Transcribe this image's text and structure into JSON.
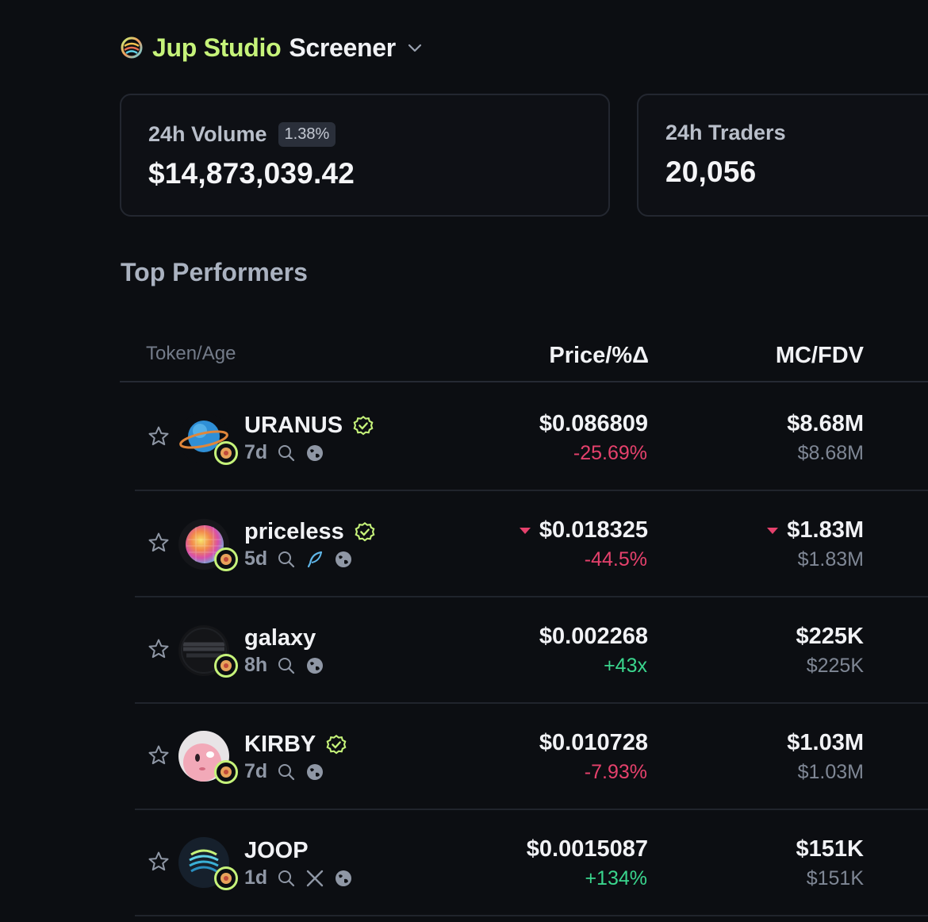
{
  "header": {
    "title_accent": "Jup Studio",
    "title_main": "Screener"
  },
  "stats": {
    "volume": {
      "label": "24h Volume",
      "change": "1.38%",
      "value": "$14,873,039.42"
    },
    "traders": {
      "label": "24h Traders",
      "value": "20,056"
    }
  },
  "section_title": "Top Performers",
  "columns": {
    "token": "Token/Age",
    "price": "Price/%Δ",
    "mc": "MC/FDV"
  },
  "rows": [
    {
      "name": "URANUS",
      "verified": true,
      "age": "7d",
      "price": "$0.086809",
      "change": "-25.69%",
      "change_dir": "neg",
      "mc": "$8.68M",
      "fdv": "$8.68M",
      "price_down_marker": false,
      "mc_down_marker": false,
      "social": [
        "search-icon",
        "globe-icon"
      ]
    },
    {
      "name": "priceless",
      "verified": true,
      "age": "5d",
      "price": "$0.018325",
      "change": "-44.5%",
      "change_dir": "neg",
      "mc": "$1.83M",
      "fdv": "$1.83M",
      "price_down_marker": true,
      "mc_down_marker": true,
      "social": [
        "search-icon",
        "feather-icon",
        "globe-icon"
      ]
    },
    {
      "name": "galaxy",
      "verified": false,
      "age": "8h",
      "price": "$0.002268",
      "change": "+43x",
      "change_dir": "pos",
      "mc": "$225K",
      "fdv": "$225K",
      "price_down_marker": false,
      "mc_down_marker": false,
      "social": [
        "search-icon",
        "globe-icon"
      ]
    },
    {
      "name": "KIRBY",
      "verified": true,
      "age": "7d",
      "price": "$0.010728",
      "change": "-7.93%",
      "change_dir": "neg",
      "mc": "$1.03M",
      "fdv": "$1.03M",
      "price_down_marker": false,
      "mc_down_marker": false,
      "social": [
        "search-icon",
        "globe-icon"
      ]
    },
    {
      "name": "JOOP",
      "verified": false,
      "age": "1d",
      "price": "$0.0015087",
      "change": "+134%",
      "change_dir": "pos",
      "mc": "$151K",
      "fdv": "$151K",
      "price_down_marker": false,
      "mc_down_marker": false,
      "social": [
        "search-icon",
        "x-icon",
        "globe-icon"
      ]
    }
  ],
  "colors": {
    "accent": "#c6f37a",
    "negative": "#e5416c",
    "positive": "#3ad58d"
  }
}
